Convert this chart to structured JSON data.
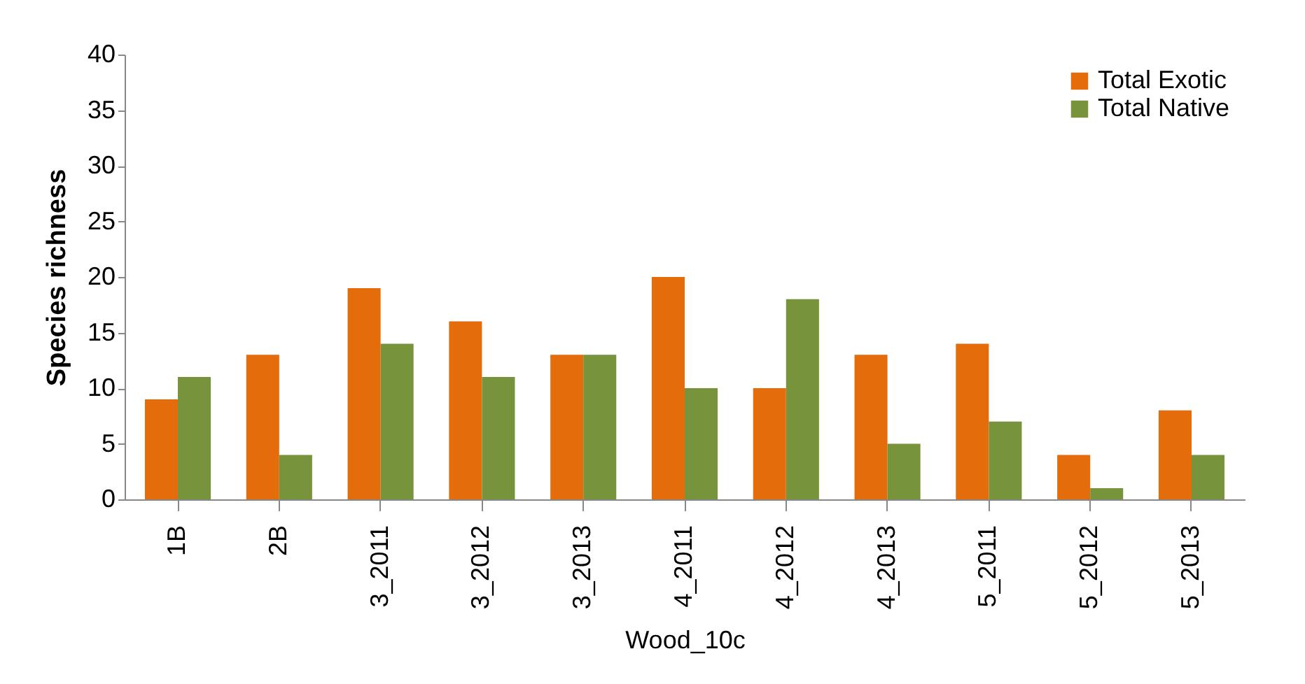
{
  "chart_data": {
    "type": "bar",
    "xlabel": "Wood_10c",
    "ylabel": "Species richness",
    "categories": [
      "1B",
      "2B",
      "3_2011",
      "3_2012",
      "3_2013",
      "4_2011",
      "4_2012",
      "4_2013",
      "5_2011",
      "5_2012",
      "5_2013"
    ],
    "series": [
      {
        "name": "Total Exotic",
        "color": "#e46c0a",
        "values": [
          9,
          13,
          19,
          16,
          13,
          20,
          10,
          13,
          14,
          4,
          8
        ]
      },
      {
        "name": "Total Native",
        "color": "#77933c",
        "values": [
          11,
          4,
          14,
          11,
          13,
          10,
          18,
          5,
          7,
          1,
          4
        ]
      }
    ],
    "ylim": [
      0,
      40
    ],
    "yticks": [
      0,
      5,
      10,
      15,
      20,
      25,
      30,
      35,
      40
    ],
    "grid": false,
    "legend": "top right"
  }
}
